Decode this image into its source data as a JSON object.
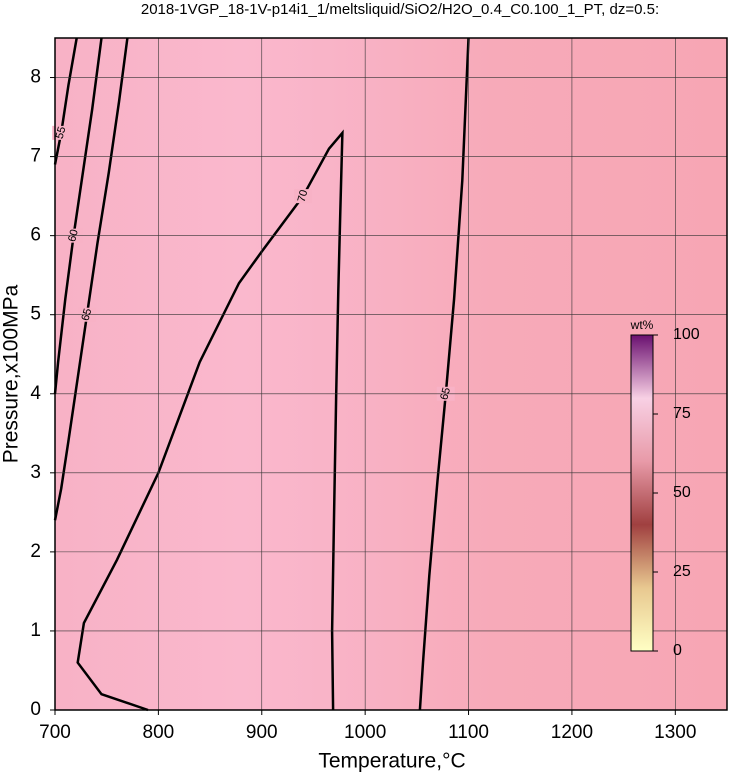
{
  "chart_data": {
    "type": "contour",
    "title": "2018-1VGP_18-1V-p14i1_1/meltsliquid/SiO2/H2O_0.4_C0.100_1_PT, dz=0.5:",
    "x_label": "Temperature,°C",
    "y_label": "Pressure,x100MPa",
    "xlim": [
      700,
      1350
    ],
    "ylim": [
      0,
      8.5
    ],
    "xticks": [
      700,
      800,
      900,
      1000,
      1100,
      1200,
      1300
    ],
    "yticks": [
      0,
      1,
      2,
      3,
      4,
      5,
      6,
      7,
      8
    ],
    "grid": true,
    "contours": [
      {
        "level": 55,
        "x": [
          721,
          713,
          706,
          700
        ],
        "y": [
          8.5,
          7.9,
          7.3,
          6.9
        ]
      },
      {
        "level": 60,
        "x": [
          745,
          736,
          727,
          718,
          710,
          703,
          700
        ],
        "y": [
          8.5,
          7.6,
          6.8,
          6.0,
          5.2,
          4.4,
          4.0
        ]
      },
      {
        "level": 65,
        "x": [
          770,
          762,
          752,
          741,
          731,
          722,
          713,
          706,
          700
        ],
        "y": [
          8.5,
          7.7,
          6.8,
          5.9,
          5.0,
          4.2,
          3.4,
          2.8,
          2.4
        ]
      },
      {
        "level": 70,
        "x": [
          790,
          745,
          722,
          728,
          760,
          800,
          840,
          878,
          900,
          940,
          965,
          978,
          976,
          974,
          972,
          970,
          968,
          969
        ],
        "y": [
          0,
          0.2,
          0.6,
          1.1,
          1.9,
          3.0,
          4.4,
          5.4,
          5.8,
          6.5,
          7.1,
          7.3,
          6.3,
          5.3,
          4.0,
          2.5,
          1.0,
          0
        ]
      },
      {
        "level": 65,
        "x": [
          1053,
          1056,
          1062,
          1070,
          1078,
          1086,
          1094,
          1100
        ],
        "y": [
          0,
          0.6,
          1.7,
          2.9,
          4.0,
          5.2,
          6.7,
          8.5
        ]
      }
    ],
    "colorbar": {
      "label": "wt%",
      "lim": [
        0,
        100
      ],
      "ticks": [
        0,
        25,
        50,
        75,
        100
      ]
    }
  }
}
